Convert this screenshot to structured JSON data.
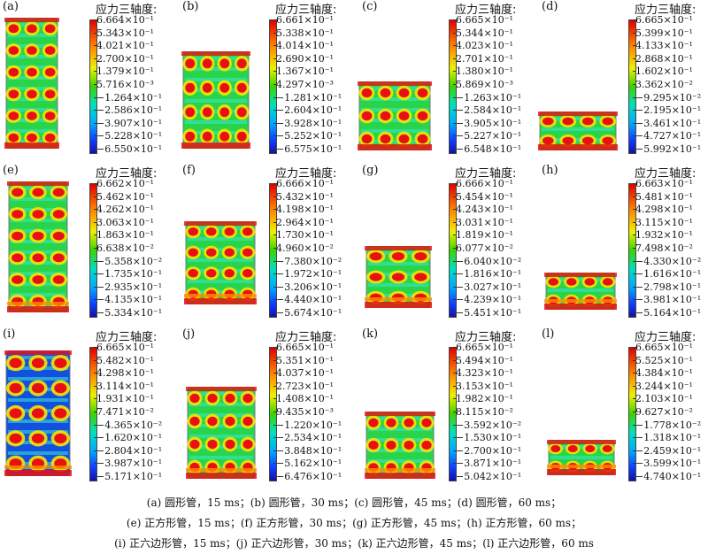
{
  "panel_title": "应力三轴度:",
  "panels": [
    {
      "label": "(a)",
      "shape": "tube",
      "ticks": [
        "6.664×10⁻¹",
        "5.343×10⁻¹",
        "4.021×10⁻¹",
        "2.700×10⁻¹",
        "1.379×10⁻¹",
        "5.716×10⁻³",
        "−1.264×10⁻¹",
        "−2.586×10⁻¹",
        "−3.907×10⁻¹",
        "−5.228×10⁻¹",
        "−6.550×10⁻¹"
      ]
    },
    {
      "label": "(b)",
      "shape": "tube",
      "ticks": [
        "6.661×10⁻¹",
        "5.338×10⁻¹",
        "4.014×10⁻¹",
        "2.690×10⁻¹",
        "1.367×10⁻¹",
        "4.297×10⁻³",
        "−1.281×10⁻¹",
        "−2.604×10⁻¹",
        "−3.928×10⁻¹",
        "−5.252×10⁻¹",
        "−6.575×10⁻¹"
      ]
    },
    {
      "label": "(c)",
      "shape": "tube",
      "ticks": [
        "6.665×10⁻¹",
        "5.344×10⁻¹",
        "4.023×10⁻¹",
        "2.701×10⁻¹",
        "1.380×10⁻¹",
        "5.869×10⁻³",
        "−1.263×10⁻¹",
        "−2.584×10⁻¹",
        "−3.905×10⁻¹",
        "−5.227×10⁻¹",
        "−6.548×10⁻¹"
      ]
    },
    {
      "label": "(d)",
      "shape": "tube",
      "ticks": [
        "6.665×10⁻¹",
        "5.399×10⁻¹",
        "4.133×10⁻¹",
        "2.868×10⁻¹",
        "1.602×10⁻¹",
        "3.362×10⁻²",
        "−9.295×10⁻²",
        "−2.195×10⁻¹",
        "−3.461×10⁻¹",
        "−4.727×10⁻¹",
        "−5.992×10⁻¹"
      ]
    },
    {
      "label": "(e)",
      "shape": "square",
      "ticks": [
        "6.662×10⁻¹",
        "5.462×10⁻¹",
        "4.262×10⁻¹",
        "3.063×10⁻¹",
        "1.863×10⁻¹",
        "6.638×10⁻²",
        "−5.358×10⁻²",
        "−1.735×10⁻¹",
        "−2.935×10⁻¹",
        "−4.135×10⁻¹",
        "−5.334×10⁻¹"
      ]
    },
    {
      "label": "(f)",
      "shape": "square",
      "ticks": [
        "6.666×10⁻¹",
        "5.432×10⁻¹",
        "4.198×10⁻¹",
        "2.964×10⁻¹",
        "1.730×10⁻¹",
        "4.960×10⁻²",
        "−7.380×10⁻²",
        "−1.972×10⁻¹",
        "−3.206×10⁻¹",
        "−4.440×10⁻¹",
        "−5.674×10⁻¹"
      ]
    },
    {
      "label": "(g)",
      "shape": "square",
      "ticks": [
        "6.666×10⁻¹",
        "5.454×10⁻¹",
        "4.243×10⁻¹",
        "3.031×10⁻¹",
        "1.819×10⁻¹",
        "6.077×10⁻²",
        "−6.040×10⁻²",
        "−1.816×10⁻¹",
        "−3.027×10⁻¹",
        "−4.239×10⁻¹",
        "−5.451×10⁻¹"
      ]
    },
    {
      "label": "(h)",
      "shape": "square",
      "ticks": [
        "6.663×10⁻¹",
        "5.481×10⁻¹",
        "4.298×10⁻¹",
        "3.115×10⁻¹",
        "1.932×10⁻¹",
        "7.498×10⁻²",
        "−4.330×10⁻²",
        "−1.616×10⁻¹",
        "−2.798×10⁻¹",
        "−3.981×10⁻¹",
        "−5.164×10⁻¹"
      ]
    },
    {
      "label": "(i)",
      "shape": "hex",
      "ticks": [
        "6.665×10⁻¹",
        "5.482×10⁻¹",
        "4.298×10⁻¹",
        "3.114×10⁻¹",
        "1.931×10⁻¹",
        "7.471×10⁻²",
        "−4.365×10⁻²",
        "−1.620×10⁻¹",
        "−2.804×10⁻¹",
        "−3.987×10⁻¹",
        "−5.171×10⁻¹"
      ]
    },
    {
      "label": "(j)",
      "shape": "hex",
      "ticks": [
        "6.665×10⁻¹",
        "5.351×10⁻¹",
        "4.037×10⁻¹",
        "2.723×10⁻¹",
        "1.408×10⁻¹",
        "9.435×10⁻³",
        "−1.220×10⁻¹",
        "−2.534×10⁻¹",
        "−3.848×10⁻¹",
        "−5.162×10⁻¹",
        "−6.476×10⁻¹"
      ]
    },
    {
      "label": "(k)",
      "shape": "hex",
      "ticks": [
        "6.665×10⁻¹",
        "5.494×10⁻¹",
        "4.323×10⁻¹",
        "3.153×10⁻¹",
        "1.982×10⁻¹",
        "8.115×10⁻²",
        "−3.592×10⁻²",
        "−1.530×10⁻¹",
        "−2.700×10⁻¹",
        "−3.871×10⁻¹",
        "−5.042×10⁻¹"
      ]
    },
    {
      "label": "(l)",
      "shape": "hex",
      "ticks": [
        "6.665×10⁻¹",
        "5.525×10⁻¹",
        "4.384×10⁻¹",
        "3.244×10⁻¹",
        "2.103×10⁻¹",
        "9.627×10⁻²",
        "−1.778×10⁻²",
        "−1.318×10⁻¹",
        "−2.459×10⁻¹",
        "−3.599×10⁻¹",
        "−4.740×10⁻¹"
      ]
    }
  ],
  "captions": [
    "(a)  圆形管，15 ms；(b)  圆形管，30 ms；(c)  圆形管，45 ms；(d)  圆形管，60 ms；",
    "(e)  正方形管，15 ms；(f)  正方形管，30 ms；(g)  正方形管，45 ms；(h)  正方形管，60 ms；",
    "(i)  正六边形管，15 ms；(j)  正六边形管，30 ms；(k)  正六边形管，45 ms；(l)  正六边形管，60 ms"
  ]
}
